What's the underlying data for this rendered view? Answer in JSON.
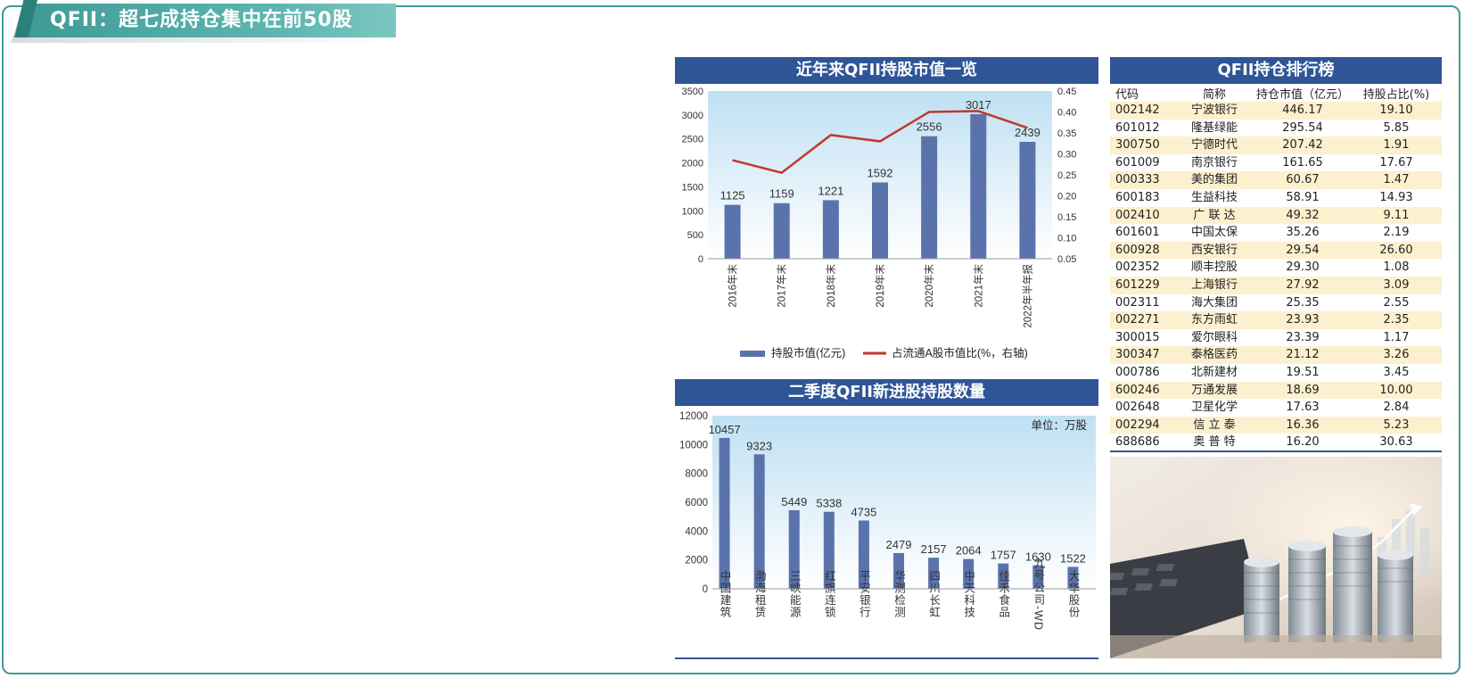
{
  "page": {
    "title": "QFII：超七成持仓集中在前50股"
  },
  "chart1": {
    "header": "近年来QFII持股市值一览",
    "legend_bar": "持股市值(亿元)",
    "legend_line": "占流通A股市值比(%，右轴)"
  },
  "chart2": {
    "header": "二季度QFII新进股持股数量",
    "unit": "单位：万股"
  },
  "chart_data": [
    {
      "type": "bar",
      "title": "近年来QFII持股市值一览",
      "categories": [
        "2016年末",
        "2017年末",
        "2018年末",
        "2019年末",
        "2020年末",
        "2021年末",
        "2022年半年报"
      ],
      "series": [
        {
          "name": "持股市值(亿元)",
          "type": "bar",
          "axis": "left",
          "values": [
            1125,
            1159,
            1221,
            1592,
            2556,
            3017,
            2439
          ]
        },
        {
          "name": "占流通A股市值比(%，右轴)",
          "type": "line",
          "axis": "right",
          "values": [
            0.285,
            0.255,
            0.345,
            0.33,
            0.4,
            0.402,
            0.362
          ]
        }
      ],
      "ylim": [
        0,
        3500
      ],
      "yticks": [
        "0",
        "500",
        "1000",
        "1500",
        "2000",
        "2500",
        "3000",
        "3500"
      ],
      "y2lim": [
        0.05,
        0.45
      ],
      "y2ticks": [
        "0.05",
        "0.10",
        "0.15",
        "0.20",
        "0.25",
        "0.30",
        "0.35",
        "0.40",
        "0.45"
      ],
      "data_labels": [
        "1125",
        "1159",
        "1221",
        "1592",
        "2556",
        "3017",
        "2439"
      ],
      "legend": "bottom",
      "colors": {
        "bar": "#5b73ad",
        "line": "#c0392b"
      }
    },
    {
      "type": "bar",
      "title": "二季度QFII新进股持股数量",
      "categories": [
        "中国建筑",
        "渤海租赁",
        "三峡能源",
        "红旗连锁",
        "平安银行",
        "华测检测",
        "四川长虹",
        "中天科技",
        "佳禾食品",
        "九号公司-WD",
        "大华股份"
      ],
      "values": [
        10457,
        9323,
        5449,
        5338,
        4735,
        2479,
        2157,
        2064,
        1757,
        1630,
        1522
      ],
      "data_labels": [
        "10457",
        "9323",
        "5449",
        "5338",
        "4735",
        "2479",
        "2157",
        "2064",
        "1757",
        "1630",
        "1522"
      ],
      "ylim": [
        0,
        12000
      ],
      "yticks": [
        "0",
        "2000",
        "4000",
        "6000",
        "8000",
        "10000",
        "12000"
      ],
      "colors": {
        "bar": "#5b73ad"
      }
    },
    {
      "type": "table",
      "title": "QFII持仓排行榜",
      "columns": [
        "代码",
        "简称",
        "持仓市值（亿元）",
        "持股占比(%)"
      ],
      "rows": [
        [
          "002142",
          "宁波银行",
          "446.17",
          "19.10"
        ],
        [
          "601012",
          "隆基绿能",
          "295.54",
          "5.85"
        ],
        [
          "300750",
          "宁德时代",
          "207.42",
          "1.91"
        ],
        [
          "601009",
          "南京银行",
          "161.65",
          "17.67"
        ],
        [
          "000333",
          "美的集团",
          "60.67",
          "1.47"
        ],
        [
          "600183",
          "生益科技",
          "58.91",
          "14.93"
        ],
        [
          "002410",
          "广 联 达",
          "49.32",
          "9.11"
        ],
        [
          "601601",
          "中国太保",
          "35.26",
          "2.19"
        ],
        [
          "600928",
          "西安银行",
          "29.54",
          "26.60"
        ],
        [
          "002352",
          "顺丰控股",
          "29.30",
          "1.08"
        ],
        [
          "601229",
          "上海银行",
          "27.92",
          "3.09"
        ],
        [
          "002311",
          "海大集团",
          "25.35",
          "2.55"
        ],
        [
          "002271",
          "东方雨虹",
          "23.93",
          "2.35"
        ],
        [
          "300015",
          "爱尔眼科",
          "23.39",
          "1.17"
        ],
        [
          "300347",
          "泰格医药",
          "21.12",
          "3.26"
        ],
        [
          "000786",
          "北新建材",
          "19.51",
          "3.45"
        ],
        [
          "600246",
          "万通发展",
          "18.69",
          "10.00"
        ],
        [
          "002648",
          "卫星化学",
          "17.63",
          "2.84"
        ],
        [
          "002294",
          "信 立 泰",
          "16.36",
          "5.23"
        ],
        [
          "688686",
          "奥 普 特",
          "16.20",
          "30.63"
        ]
      ],
      "colors": {
        "header": "#2f5597",
        "stripe": "#fdf0cf"
      }
    }
  ]
}
